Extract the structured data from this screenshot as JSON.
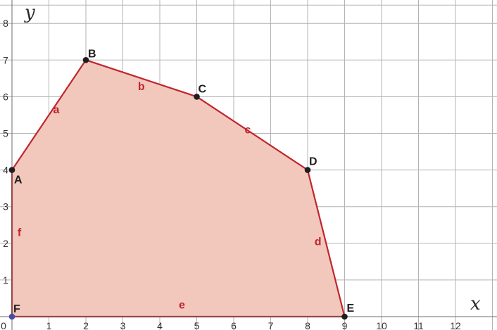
{
  "chart_data": {
    "type": "polygon",
    "xlabel": "x",
    "ylabel": "y",
    "xlim": [
      0,
      12
    ],
    "ylim": [
      0,
      8
    ],
    "x_ticks": [
      "0",
      "1",
      "2",
      "3",
      "4",
      "5",
      "6",
      "7",
      "8",
      "9",
      "10",
      "11",
      "12"
    ],
    "y_ticks": [
      "1",
      "2",
      "3",
      "4",
      "5",
      "6",
      "7",
      "8"
    ],
    "grid": true,
    "vertices": [
      {
        "label": "A",
        "x": 0,
        "y": 4
      },
      {
        "label": "B",
        "x": 2,
        "y": 7
      },
      {
        "label": "C",
        "x": 5,
        "y": 6
      },
      {
        "label": "D",
        "x": 8,
        "y": 4
      },
      {
        "label": "E",
        "x": 9,
        "y": 0
      },
      {
        "label": "F",
        "x": 0,
        "y": 0
      }
    ],
    "edges": [
      {
        "label": "a",
        "from": "A",
        "to": "B"
      },
      {
        "label": "b",
        "from": "B",
        "to": "C"
      },
      {
        "label": "c",
        "from": "C",
        "to": "D"
      },
      {
        "label": "d",
        "from": "D",
        "to": "E"
      },
      {
        "label": "e",
        "from": "E",
        "to": "F"
      },
      {
        "label": "f",
        "from": "F",
        "to": "A"
      }
    ]
  },
  "colors": {
    "fill": "#f2c8bd",
    "edge": "#c0262d",
    "edge_label": "#c0262d",
    "vertex_dot": "#1e1e1e",
    "vertex_label": "#1e1e1e",
    "origin_dot": "#4b4ba0"
  }
}
